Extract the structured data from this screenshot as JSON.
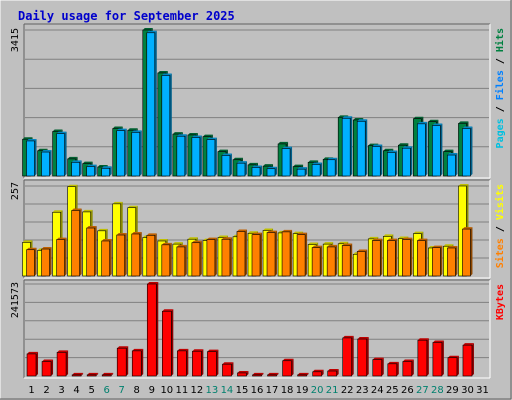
{
  "colors": {
    "background": "#c0c0c0",
    "panel": "#c0c0c0",
    "grid": "#808080",
    "title": "#0000cc",
    "hits": "#008040",
    "files": "#00b0ff",
    "pages": "#00c0e0",
    "visits": "#ffff00",
    "sites": "#ff8000",
    "kbytes": "#ff0000",
    "weekend_label": "#00806e",
    "weekday_label": "#000000"
  },
  "chart_data": {
    "type": "bar",
    "title": "Daily usage for September 2025",
    "days": [
      "1",
      "2",
      "3",
      "4",
      "5",
      "6",
      "7",
      "8",
      "9",
      "10",
      "11",
      "12",
      "13",
      "14",
      "15",
      "16",
      "17",
      "18",
      "19",
      "20",
      "21",
      "22",
      "23",
      "24",
      "25",
      "26",
      "27",
      "28",
      "29",
      "30",
      "31"
    ],
    "weekend_days": [
      "6",
      "7",
      "13",
      "14",
      "20",
      "21",
      "27",
      "28"
    ],
    "panels": [
      {
        "id": "hits",
        "max_label": "3415",
        "ymax": 3415,
        "side_labels": [
          {
            "text": "Pages",
            "color": "#00c0e0"
          },
          {
            "text": "Files",
            "color": "#0080ff"
          },
          {
            "text": "Hits",
            "color": "#008040"
          }
        ],
        "series": [
          {
            "name": "Hits",
            "color": "#008040",
            "values": [
              860,
              590,
              1040,
              400,
              290,
              210,
              1110,
              1070,
              3415,
              2410,
              980,
              960,
              920,
              570,
              380,
              260,
              230,
              750,
              220,
              320,
              390,
              1370,
              1310,
              710,
              590,
              720,
              1340,
              1270,
              570,
              1230,
              0
            ]
          },
          {
            "name": "Files",
            "color": "#00b0ff",
            "values": [
              820,
              560,
              990,
              320,
              220,
              180,
              1060,
              1020,
              3350,
              2350,
              930,
              900,
              850,
              480,
              300,
              200,
              170,
              640,
              160,
              270,
              380,
              1350,
              1280,
              690,
              550,
              650,
              1220,
              1180,
              490,
              1110,
              0
            ]
          }
        ]
      },
      {
        "id": "visits",
        "max_label": "257",
        "ymax": 257,
        "side_labels": [
          {
            "text": "Sites",
            "color": "#ff8000"
          },
          {
            "text": "Visits",
            "color": "#ffff00"
          }
        ],
        "series": [
          {
            "name": "Visits",
            "color": "#ffff00",
            "values": [
              96,
              73,
              182,
              255,
              183,
              129,
              206,
              195,
              110,
              100,
              91,
              105,
              101,
              110,
              112,
              122,
              130,
              123,
              121,
              90,
              91,
              92,
              62,
              106,
              113,
              107,
              121,
              80,
              85,
              257,
              0
            ]
          },
          {
            "name": "Sites",
            "color": "#ff8000",
            "values": [
              75,
              77,
              104,
              187,
              137,
              100,
              117,
              120,
              116,
              89,
              83,
              95,
              104,
              105,
              127,
              118,
              124,
              126,
              118,
              81,
              83,
              87,
              70,
              101,
              101,
              104,
              101,
              81,
              80,
              134,
              0
            ]
          }
        ]
      },
      {
        "id": "kbytes",
        "max_label": "241573",
        "ymax": 241573,
        "side_labels": [
          {
            "text": "KBytes",
            "color": "#ff0000"
          }
        ],
        "series": [
          {
            "name": "KBytes",
            "color": "#ff0000",
            "values": [
              58000,
              38000,
              62000,
              3000,
              3000,
              3000,
              73000,
              66000,
              241573,
              170000,
              66000,
              65000,
              64000,
              31000,
              8000,
              3000,
              3000,
              40000,
              3000,
              11000,
              13000,
              100000,
              97000,
              43000,
              32000,
              38000,
              94000,
              88000,
              48000,
              81000,
              0
            ]
          }
        ]
      }
    ]
  }
}
